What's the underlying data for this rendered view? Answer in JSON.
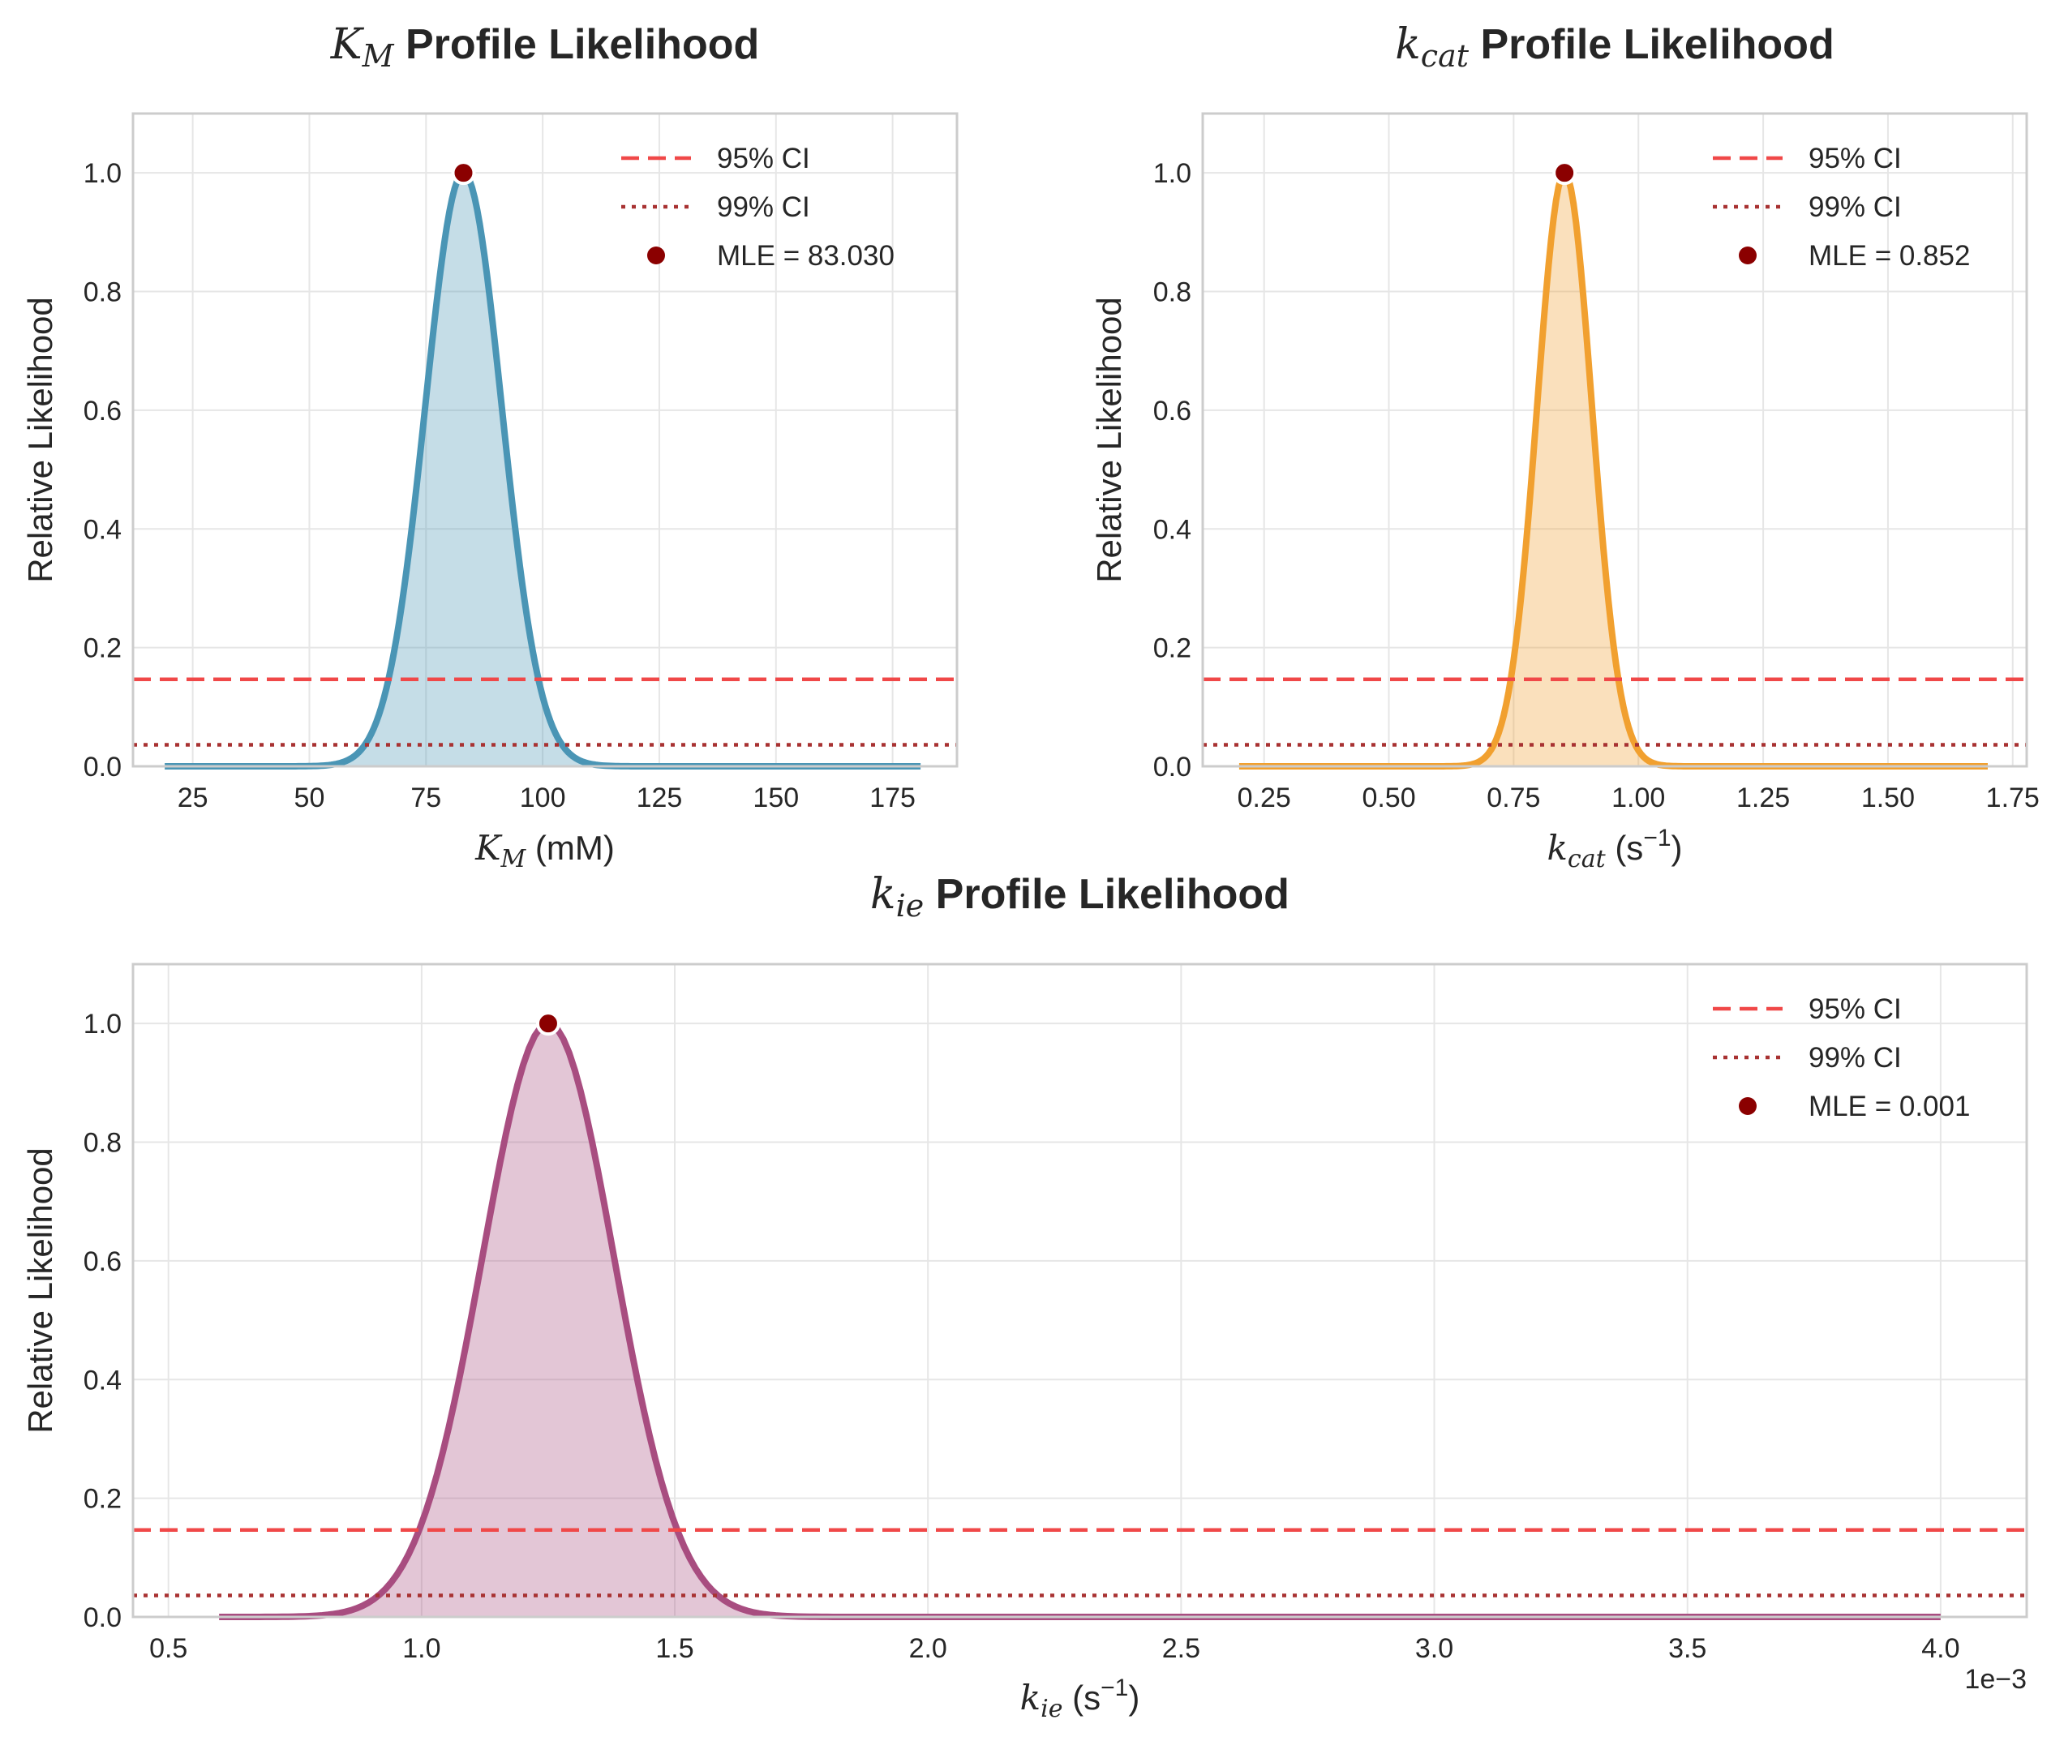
{
  "colors": {
    "ci95": "#f04848",
    "ci99": "#a83232",
    "mle": "#8b0000",
    "km": "#4a95b5",
    "kcat": "#f1a02f",
    "kie": "#a84d80",
    "grid": "#e6e6e6",
    "spine": "#cccccc"
  },
  "chart_data": [
    {
      "id": "km",
      "type": "area",
      "title_math": "K",
      "title_sub": "M",
      "title_rest": " Profile Likelihood",
      "xlabel_math": "K",
      "xlabel_sub": "M",
      "xlabel_rest": " (mM)",
      "xlabel_sup": "",
      "xlabel_tail": "",
      "ylabel": "Relative Likelihood",
      "xlim": [
        12.2,
        188.8
      ],
      "ylim": [
        0,
        1.1
      ],
      "xticks": [
        25,
        50,
        75,
        100,
        125,
        150,
        175
      ],
      "xtick_labels": [
        "25",
        "50",
        "75",
        "100",
        "125",
        "150",
        "175"
      ],
      "yticks": [
        0,
        0.2,
        0.4,
        0.6,
        0.8,
        1.0
      ],
      "ytick_labels": [
        "0.0",
        "0.2",
        "0.4",
        "0.6",
        "0.8",
        "1.0"
      ],
      "x_offset_text": "",
      "x_range": [
        19,
        181
      ],
      "mle": 83.03,
      "sigma": 8.2,
      "ci95_level": 0.1465,
      "ci99_level": 0.0362,
      "color_key": "km",
      "legend": [
        "95% CI",
        "99% CI",
        "MLE = 83.030"
      ]
    },
    {
      "id": "kcat",
      "type": "area",
      "title_math": "k",
      "title_sub": "cat",
      "title_rest": " Profile Likelihood",
      "xlabel_math": "k",
      "xlabel_sub": "cat",
      "xlabel_rest": " (s",
      "xlabel_sup": "−1",
      "xlabel_tail": ")",
      "ylabel": "Relative Likelihood",
      "xlim": [
        0.127,
        1.778
      ],
      "ylim": [
        0,
        1.1
      ],
      "xticks": [
        0.25,
        0.5,
        0.75,
        1.0,
        1.25,
        1.5,
        1.75
      ],
      "xtick_labels": [
        "0.25",
        "0.50",
        "0.75",
        "1.00",
        "1.25",
        "1.50",
        "1.75"
      ],
      "yticks": [
        0,
        0.2,
        0.4,
        0.6,
        0.8,
        1.0
      ],
      "ytick_labels": [
        "0.0",
        "0.2",
        "0.4",
        "0.6",
        "0.8",
        "1.0"
      ],
      "x_offset_text": "",
      "x_range": [
        0.2,
        1.7
      ],
      "mle": 0.852,
      "sigma": 0.055,
      "ci95_level": 0.1465,
      "ci99_level": 0.0362,
      "color_key": "kcat",
      "legend": [
        "95% CI",
        "99% CI",
        "MLE = 0.852"
      ]
    },
    {
      "id": "kie",
      "type": "area",
      "title_math": "k",
      "title_sub": "ie",
      "title_rest": " Profile Likelihood",
      "xlabel_math": "k",
      "xlabel_sub": "ie",
      "xlabel_rest": " (s",
      "xlabel_sup": "−1",
      "xlabel_tail": ")",
      "ylabel": "Relative Likelihood",
      "xlim": [
        0.43,
        4.17
      ],
      "ylim": [
        0,
        1.1
      ],
      "xticks": [
        0.5,
        1.0,
        1.5,
        2.0,
        2.5,
        3.0,
        3.5,
        4.0
      ],
      "xtick_labels": [
        "0.5",
        "1.0",
        "1.5",
        "2.0",
        "2.5",
        "3.0",
        "3.5",
        "4.0"
      ],
      "yticks": [
        0,
        0.2,
        0.4,
        0.6,
        0.8,
        1.0
      ],
      "ytick_labels": [
        "0.0",
        "0.2",
        "0.4",
        "0.6",
        "0.8",
        "1.0"
      ],
      "x_offset_text": "1e−3",
      "x_range": [
        0.6,
        4.0
      ],
      "mle": 1.25,
      "sigma": 0.13,
      "ci95_level": 0.1465,
      "ci99_level": 0.0362,
      "color_key": "kie",
      "legend": [
        "95% CI",
        "99% CI",
        "MLE = 0.001"
      ]
    }
  ]
}
